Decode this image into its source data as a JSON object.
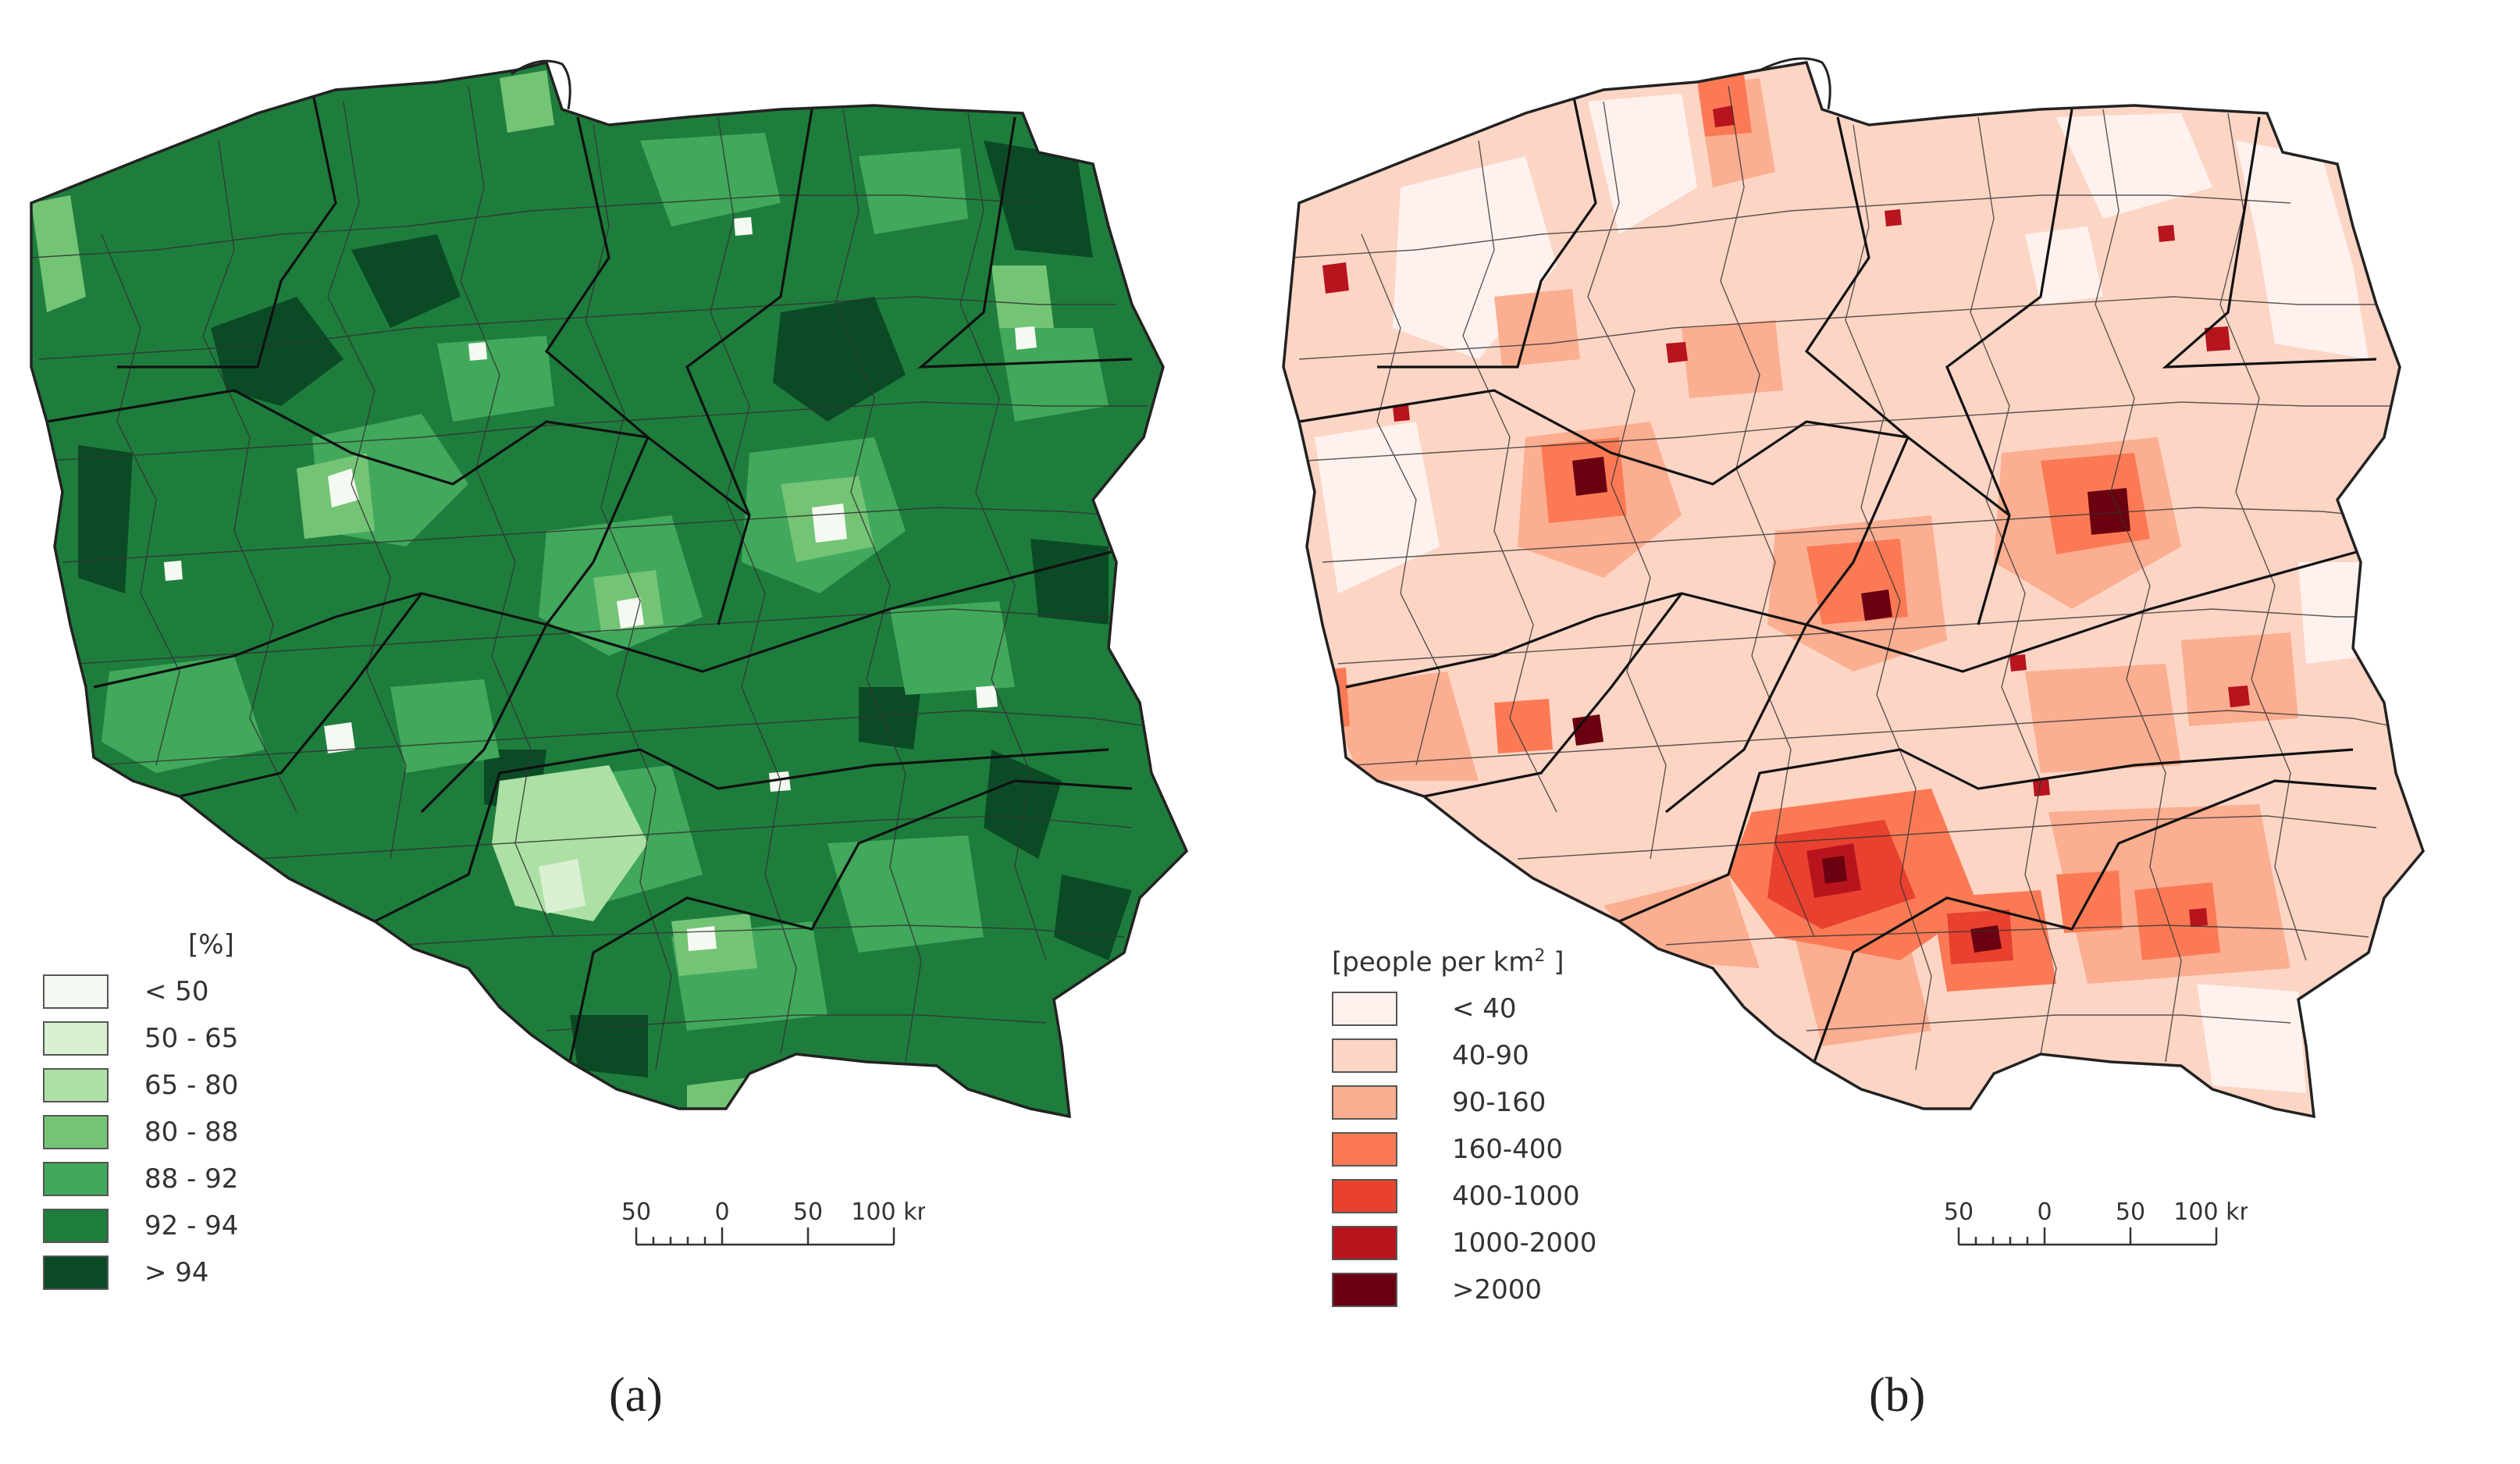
{
  "figure": {
    "panels": [
      {
        "id": "a",
        "caption": "(a)",
        "legend_title": "[%]",
        "legend": [
          {
            "label": "< 50",
            "color": "#f4faf1"
          },
          {
            "label": "50 - 65",
            "color": "#d9f0d3"
          },
          {
            "label": "65 - 80",
            "color": "#ade0a5"
          },
          {
            "label": "80 - 88",
            "color": "#74c476"
          },
          {
            "label": "88 - 92",
            "color": "#41a85c"
          },
          {
            "label": "92 - 94",
            "color": "#1e7d3c"
          },
          {
            "label": "> 94",
            "color": "#0a4b25"
          }
        ],
        "scale_labels": [
          "50",
          "0",
          "50",
          "100 km"
        ],
        "border_color": "#333333"
      },
      {
        "id": "b",
        "caption": "(b)",
        "legend_title": "[people per km",
        "legend_title_sup": "2",
        "legend_title_end": " ]",
        "legend": [
          {
            "label": "< 40",
            "color": "#fff2ee"
          },
          {
            "label": "40-90",
            "color": "#fcd5c5"
          },
          {
            "label": "90-160",
            "color": "#fcae91"
          },
          {
            "label": "160-400",
            "color": "#fb7a55"
          },
          {
            "label": "400-1000",
            "color": "#e8412f"
          },
          {
            "label": "1000-2000",
            "color": "#b7141e"
          },
          {
            "label": ">2000",
            "color": "#6b0011"
          }
        ],
        "scale_labels": [
          "50",
          "0",
          "50",
          "100 km"
        ],
        "border_color": "#333333"
      }
    ]
  }
}
